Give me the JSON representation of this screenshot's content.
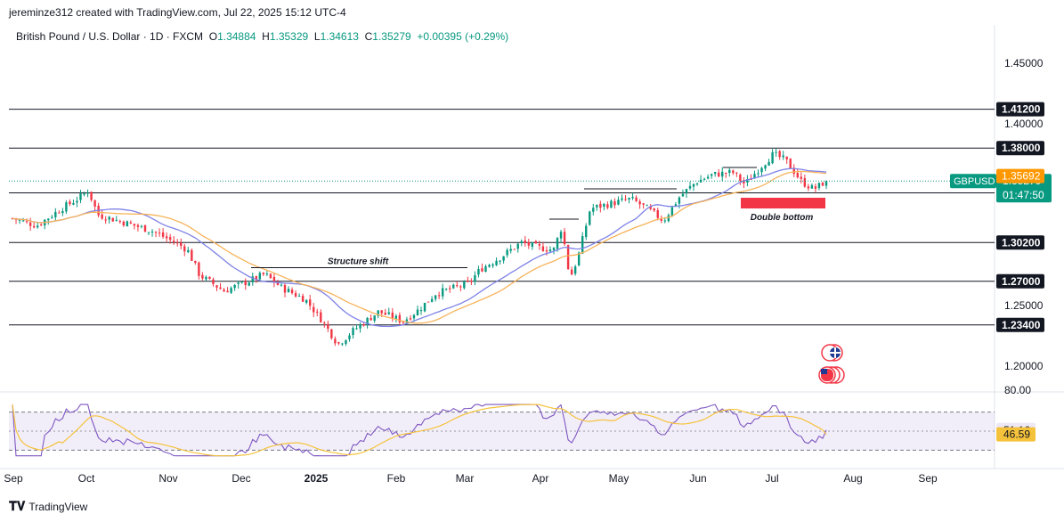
{
  "header": {
    "credit": "jereminze312 created with TradingView.com, Jul 22, 2025 15:12 UTC-4"
  },
  "legend": {
    "symbol": "British Pound / U.S. Dollar · 1D · FXCM",
    "o_label": "O",
    "o_value": "1.34884",
    "h_label": "H",
    "h_value": "1.35329",
    "l_label": "L",
    "l_value": "1.34613",
    "c_label": "C",
    "c_value": "1.35279",
    "change": "+0.00395 (+0.29%)"
  },
  "footer": {
    "brand": "TradingView"
  },
  "colors": {
    "up": "#089981",
    "down": "#f23645",
    "ma_fast": "#7e82e6",
    "ma_slow": "#f7b35a",
    "rsi": "#7e57c2",
    "rsi_ma": "#f5c23b",
    "support_zone": "#f23645",
    "price_badge": "#089981",
    "ma_badge": "#ff9800"
  },
  "chart_data": {
    "type": "candlestick",
    "price_axis": {
      "ylim": [
        1.185,
        1.47
      ],
      "ticks": [
        "1.45000",
        "1.40000",
        "1.25000",
        "1.20000"
      ]
    },
    "x_labels": [
      "Sep",
      "Oct",
      "Nov",
      "Dec",
      "2025",
      "Feb",
      "Mar",
      "Apr",
      "May",
      "Jun",
      "Jul",
      "Aug",
      "Sep"
    ],
    "horizontal_levels": [
      {
        "value": 1.412,
        "label": "1.41200"
      },
      {
        "value": 1.38,
        "label": "1.38000"
      },
      {
        "value": 1.343,
        "label": "1.34300"
      },
      {
        "value": 1.302,
        "label": "1.30200"
      },
      {
        "value": 1.27,
        "label": "1.27000"
      },
      {
        "value": 1.234,
        "label": "1.23400"
      }
    ],
    "current_price": {
      "symbol": "GBPUSD",
      "value": "1.35279",
      "countdown": "01:47:50"
    },
    "ma_value": "1.35692",
    "annotations": [
      {
        "text": "Structure shift",
        "value": 1.282
      },
      {
        "text": "Double bottom",
        "value": 1.343
      }
    ],
    "key_points": [
      {
        "date": "Sep",
        "close": 1.32
      },
      {
        "date": "Oct",
        "close": 1.335
      },
      {
        "date": "Nov",
        "close": 1.29
      },
      {
        "date": "Dec",
        "close": 1.262
      },
      {
        "date": "2025",
        "close": 1.238
      },
      {
        "date": "Jan low",
        "close": 1.215
      },
      {
        "date": "Feb",
        "close": 1.248
      },
      {
        "date": "Mar",
        "close": 1.292
      },
      {
        "date": "Apr",
        "close": 1.295
      },
      {
        "date": "May",
        "close": 1.33
      },
      {
        "date": "Jun",
        "close": 1.355
      },
      {
        "date": "Jul",
        "close": 1.372
      },
      {
        "date": "Jul 22",
        "close": 1.35279
      }
    ],
    "rsi": {
      "ylim": [
        20,
        80
      ],
      "ticks": [
        "80.00"
      ],
      "rsi_value": "51.16",
      "rsi_ma_value": "46.59",
      "overbought": 70,
      "oversold": 30
    }
  }
}
